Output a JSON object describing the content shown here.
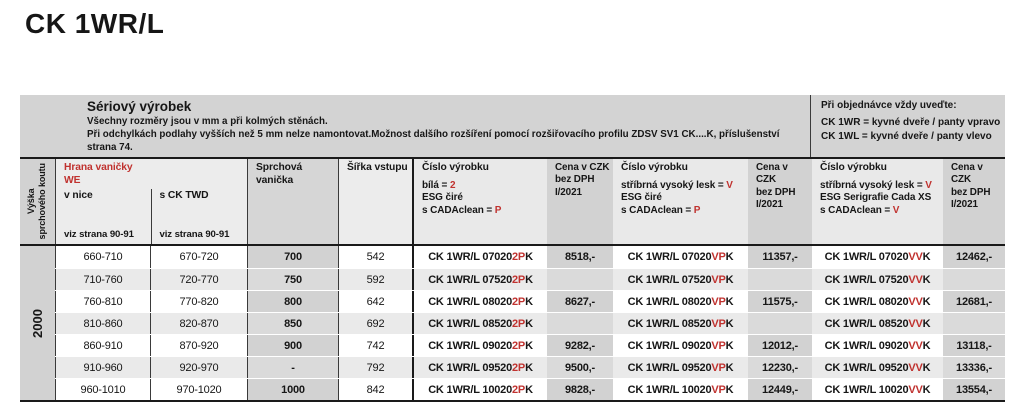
{
  "page": {
    "title": "CK 1WR/L"
  },
  "colors": {
    "accent_red": "#c0322f"
  },
  "band": {
    "left_title": "Sériový výrobek",
    "left_lines": [
      "Všechny rozměry jsou v mm a při kolmých stěnách.",
      "Při odchylkách podlahy vyšších než 5 mm nelze namontovat.Možnost dalšího rozšíření pomocí rozšiřovacího profilu ZDSV SV1 CK....K, příslušenství",
      "strana 74."
    ],
    "right_title": "Při objednávce vždy uveďte:",
    "right_lines": [
      "CK 1WR = kyvné dveře / panty vpravo",
      "CK 1WL = kyvné dveře / panty vlevo"
    ]
  },
  "table": {
    "height_axis": [
      "Výška",
      "sprchového koutu"
    ],
    "height_value": "2000",
    "edge_header": {
      "title": "Hrana vaničky",
      "sub": "WE",
      "col_nice": "v nice",
      "col_twd": "s CK TWD",
      "see": "viz strana 90-91"
    },
    "tray_header": "Sprchová vanička",
    "entry_header": "Šířka vstupu",
    "product_headers": [
      {
        "title": "Číslo výrobku",
        "lines": [
          {
            "t": "bílá = ",
            "r": "2"
          },
          {
            "t": "ESG čiré",
            "r": ""
          },
          {
            "t": "s CADAclean = ",
            "r": "P"
          }
        ]
      },
      {
        "title": "Číslo výrobku",
        "lines": [
          {
            "t": "stříbrná vysoký lesk = ",
            "r": "V"
          },
          {
            "t": "ESG čiré",
            "r": ""
          },
          {
            "t": "s CADAclean = ",
            "r": "P"
          }
        ]
      },
      {
        "title": "Číslo výrobku",
        "lines": [
          {
            "t": "stříbrná vysoký lesk = ",
            "r": "V"
          },
          {
            "t": "ESG Serigrafie Cada XS",
            "r": ""
          },
          {
            "t": "s CADAclean = ",
            "r": "V"
          }
        ]
      }
    ],
    "price_header": {
      "l1": "Cena v CZK",
      "l2": "bez DPH",
      "l3": "I/2021"
    },
    "code_suffix_black": "K",
    "rows": [
      {
        "nice": "660-710",
        "twd": "670-720",
        "tray": "700",
        "entry": "542",
        "code1": "CK 1WR/L 07020 ",
        "red1": "2P",
        "price1": "8518,-",
        "code2": "CK 1WR/L 07020 ",
        "red2": "VP",
        "price2": "11357,-",
        "code3": "CK 1WR/L 07020 ",
        "red3": "VV",
        "price3": "12462,-"
      },
      {
        "nice": "710-760",
        "twd": "720-770",
        "tray": "750",
        "entry": "592",
        "code1": "CK 1WR/L 07520 ",
        "red1": "2P",
        "price1": "",
        "code2": "CK 1WR/L 07520 ",
        "red2": "VP",
        "price2": "",
        "code3": "CK 1WR/L 07520 ",
        "red3": "VV",
        "price3": ""
      },
      {
        "nice": "760-810",
        "twd": "770-820",
        "tray": "800",
        "entry": "642",
        "code1": "CK 1WR/L 08020 ",
        "red1": "2P",
        "price1": "8627,-",
        "code2": "CK 1WR/L 08020 ",
        "red2": "VP",
        "price2": "11575,-",
        "code3": "CK 1WR/L 08020 ",
        "red3": "VV",
        "price3": "12681,-"
      },
      {
        "nice": "810-860",
        "twd": "820-870",
        "tray": "850",
        "entry": "692",
        "code1": "CK 1WR/L 08520 ",
        "red1": "2P",
        "price1": "",
        "code2": "CK 1WR/L 08520 ",
        "red2": "VP",
        "price2": "",
        "code3": "CK 1WR/L 08520 ",
        "red3": "VV",
        "price3": ""
      },
      {
        "nice": "860-910",
        "twd": "870-920",
        "tray": "900",
        "entry": "742",
        "code1": "CK 1WR/L 09020 ",
        "red1": "2P",
        "price1": "9282,-",
        "code2": "CK 1WR/L 09020 ",
        "red2": "VP",
        "price2": "12012,-",
        "code3": "CK 1WR/L 09020 ",
        "red3": "VV",
        "price3": "13118,-"
      },
      {
        "nice": "910-960",
        "twd": "920-970",
        "tray": "-",
        "entry": "792",
        "code1": "CK 1WR/L 09520 ",
        "red1": "2P",
        "price1": "9500,-",
        "code2": "CK 1WR/L 09520 ",
        "red2": "VP",
        "price2": "12230,-",
        "code3": "CK 1WR/L 09520 ",
        "red3": "VV",
        "price3": "13336,-"
      },
      {
        "nice": "960-1010",
        "twd": "970-1020",
        "tray": "1000",
        "entry": "842",
        "code1": "CK 1WR/L 10020 ",
        "red1": "2P",
        "price1": "9828,-",
        "code2": "CK 1WR/L 10020 ",
        "red2": "VP",
        "price2": "12449,-",
        "code3": "CK 1WR/L 10020 ",
        "red3": "VV",
        "price3": "13554,-"
      }
    ]
  }
}
